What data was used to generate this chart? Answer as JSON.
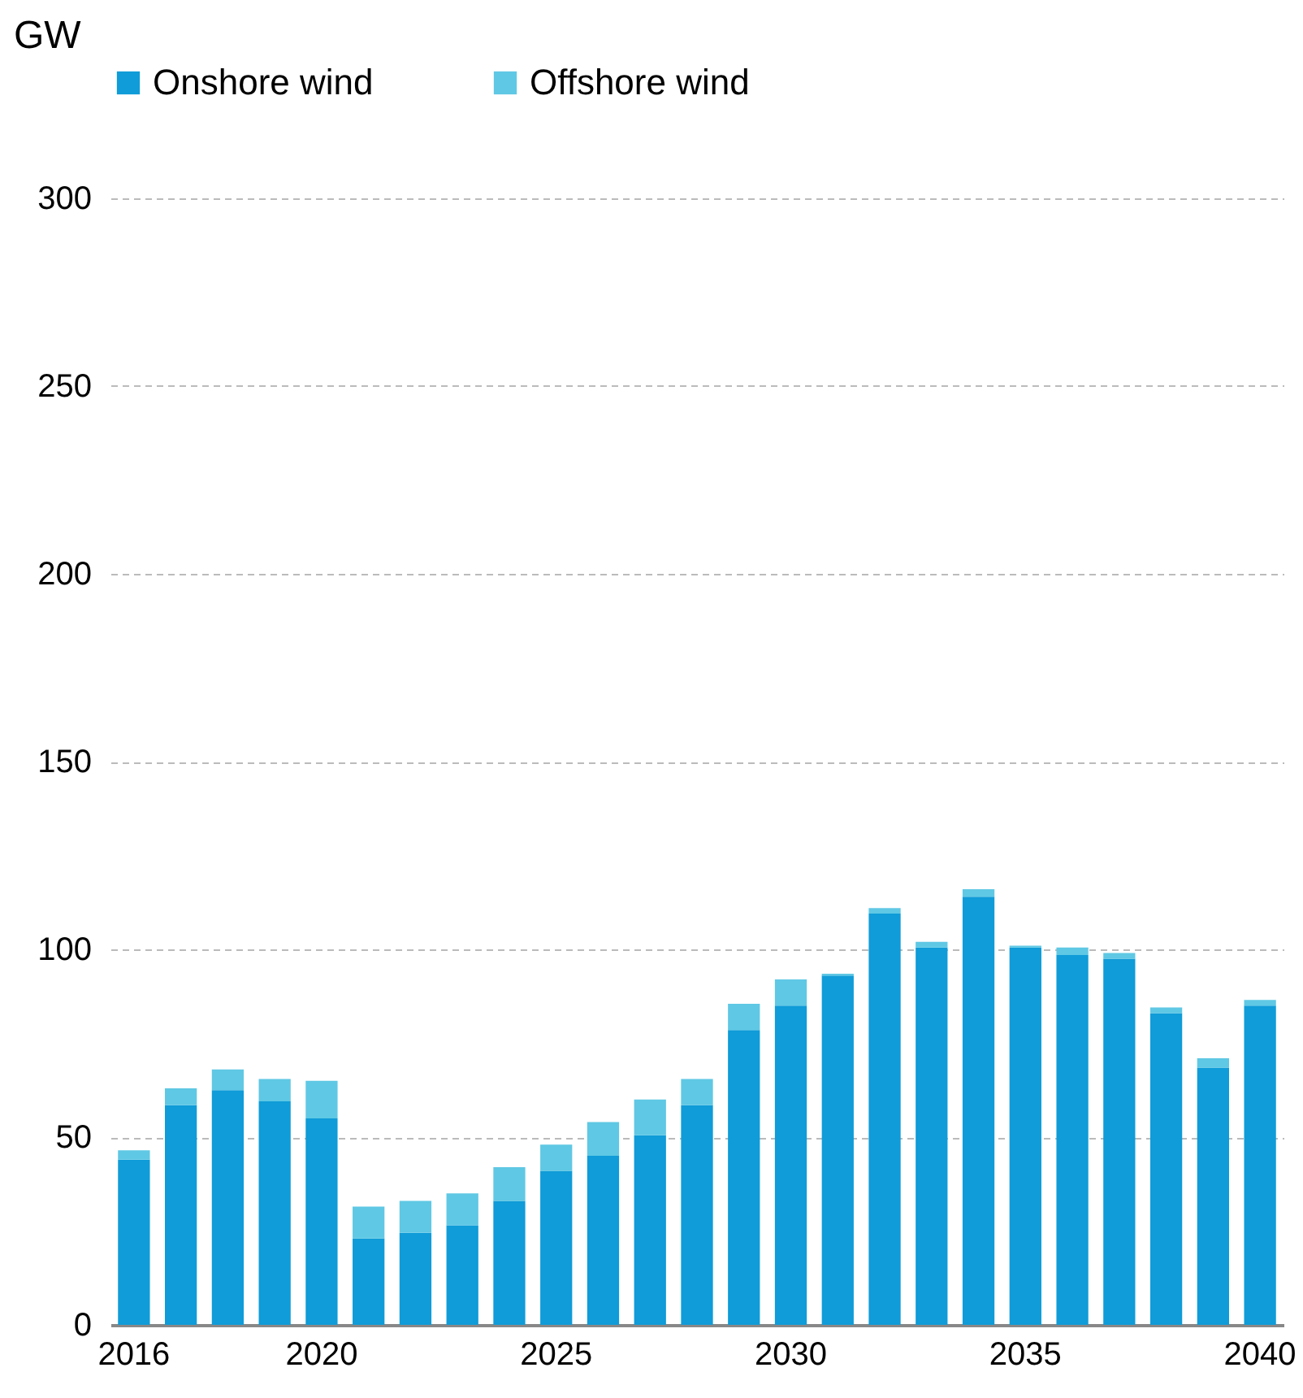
{
  "chart_data": {
    "type": "bar",
    "stacked": true,
    "ylabel": "GW",
    "categories": [
      "2016",
      null,
      null,
      null,
      "2020",
      null,
      null,
      null,
      null,
      "2025",
      null,
      null,
      null,
      null,
      "2030",
      null,
      null,
      null,
      null,
      "2035",
      null,
      null,
      null,
      null,
      "2040"
    ],
    "series": [
      {
        "name": "Onshore wind",
        "color": "#0f9cd8",
        "values": [
          44,
          58.5,
          62.5,
          59.5,
          55,
          23,
          24.5,
          26.5,
          33,
          41,
          45,
          50.5,
          58.5,
          78.5,
          85,
          93,
          109.5,
          100.5,
          114,
          100.5,
          98.5,
          97.5,
          83,
          68.5,
          85
        ]
      },
      {
        "name": "Offshore wind",
        "color": "#5fc8e4",
        "values": [
          2.5,
          4.5,
          5.5,
          6,
          10,
          8.5,
          8.5,
          8.5,
          9,
          7,
          9,
          9.5,
          7,
          7,
          7,
          0.5,
          1.5,
          1.5,
          2,
          0.5,
          2,
          1.5,
          1.5,
          2.5,
          1.5
        ]
      }
    ],
    "ylim": [
      0,
      300
    ],
    "yticks": [
      0,
      50,
      100,
      150,
      200,
      250,
      300
    ],
    "grid": "y",
    "legend": "top"
  }
}
